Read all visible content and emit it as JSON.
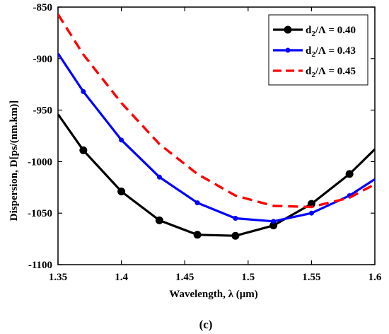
{
  "chart_data": {
    "type": "line",
    "xlabel": "Wavelength, λ (μm)",
    "ylabel": "Dispersion, D[ps/(nm.km)]",
    "caption": "(c)",
    "xlim": [
      1.35,
      1.6
    ],
    "ylim": [
      -1100,
      -850
    ],
    "xticks": [
      "1.35",
      "1.4",
      "1.45",
      "1.5",
      "1.55",
      "1.6"
    ],
    "xtick_values": [
      1.35,
      1.4,
      1.45,
      1.5,
      1.55,
      1.6
    ],
    "yticks": [
      "-1100",
      "-1050",
      "-1000",
      "-950",
      "-900",
      "-850"
    ],
    "ytick_values": [
      -1100,
      -1050,
      -1000,
      -950,
      -900,
      -850
    ],
    "grid": false,
    "legend_position": "top-right",
    "series": [
      {
        "name": "d2/Λ = 0.40",
        "label_main": "d",
        "label_sub": "2",
        "label_rest": "/Λ = 0.40",
        "color": "#000000",
        "line_style": "solid",
        "marker": "large-circle",
        "x": [
          1.35,
          1.37,
          1.4,
          1.43,
          1.46,
          1.49,
          1.52,
          1.55,
          1.58,
          1.6
        ],
        "y": [
          -954,
          -989,
          -1029,
          -1057,
          -1071,
          -1072,
          -1062,
          -1041,
          -1012,
          -988
        ],
        "marker_x": [
          1.37,
          1.4,
          1.43,
          1.46,
          1.49,
          1.52,
          1.55,
          1.58
        ]
      },
      {
        "name": "d2/Λ = 0.43",
        "label_main": "d",
        "label_sub": "2",
        "label_rest": "/Λ = 0.43",
        "color": "#0000ff",
        "line_style": "solid",
        "marker": "small-circle",
        "x": [
          1.35,
          1.37,
          1.4,
          1.43,
          1.46,
          1.49,
          1.52,
          1.55,
          1.58,
          1.6
        ],
        "y": [
          -895,
          -932,
          -979,
          -1015,
          -1040,
          -1055,
          -1058,
          -1050,
          -1033,
          -1017
        ],
        "marker_x": [
          1.37,
          1.4,
          1.43,
          1.46,
          1.49,
          1.52,
          1.55,
          1.58
        ]
      },
      {
        "name": "d2/Λ = 0.45",
        "label_main": "d",
        "label_sub": "2",
        "label_rest": "/Λ = 0.45",
        "color": "#ff0000",
        "line_style": "dashed",
        "marker": "none",
        "x": [
          1.35,
          1.37,
          1.4,
          1.43,
          1.46,
          1.49,
          1.52,
          1.55,
          1.58,
          1.6
        ],
        "y": [
          -857,
          -896,
          -943,
          -983,
          -1012,
          -1033,
          -1043,
          -1044,
          -1035,
          -1022
        ],
        "marker_x": []
      }
    ]
  }
}
